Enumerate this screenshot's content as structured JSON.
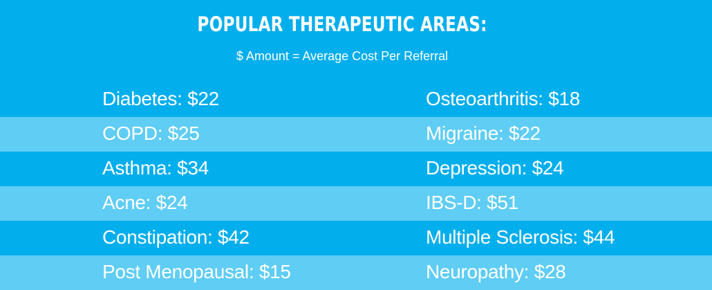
{
  "header": {
    "title": "POPULAR THERAPEUTIC AREAS:",
    "subtitle": "$ Amount = Average Cost Per Referral"
  },
  "rows": [
    {
      "left": "Diabetes: $22",
      "right": "Osteoarthritis: $18"
    },
    {
      "left": "COPD: $25",
      "right": "Migraine: $22"
    },
    {
      "left": "Asthma: $34",
      "right": "Depression: $24"
    },
    {
      "left": "Acne: $24",
      "right": "IBS-D: $51"
    },
    {
      "left": "Constipation: $42",
      "right": "Multiple Sclerosis: $44"
    },
    {
      "left": "Post Menopausal: $15",
      "right": "Neuropathy: $28"
    }
  ],
  "colors": {
    "background": "#03aeec",
    "stripe": "#5fcdf4",
    "text": "#ffffff"
  }
}
